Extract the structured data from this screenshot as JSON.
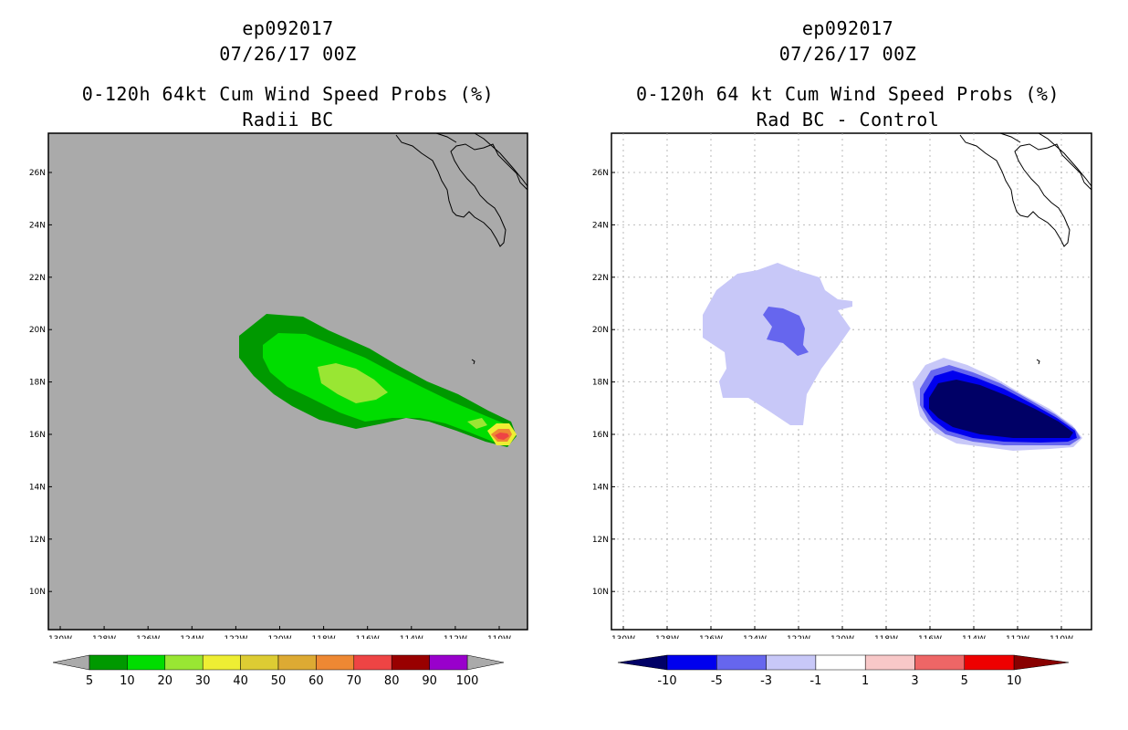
{
  "left_panel": {
    "title_line1": "ep092017",
    "title_line2": "07/26/17 00Z",
    "title_line3": "0-120h 64kt Cum Wind Speed Probs (%)",
    "title_line4": "Radii BC",
    "lat_ticks": [
      "26N",
      "24N",
      "22N",
      "20N",
      "18N",
      "16N",
      "14N",
      "12N",
      "10N"
    ],
    "lon_ticks": [
      "130W",
      "128W",
      "126W",
      "124W",
      "122W",
      "120W",
      "118W",
      "116W",
      "114W",
      "112W",
      "110W"
    ],
    "colorbar": {
      "labels": [
        "5",
        "10",
        "20",
        "30",
        "40",
        "50",
        "60",
        "70",
        "80",
        "90",
        "100"
      ],
      "colors": [
        "#009900",
        "#00dd00",
        "#99e633",
        "#eeee33",
        "#ddcc33",
        "#ddaa33",
        "#ee8833",
        "#ee4444",
        "#990000",
        "#9900cc"
      ]
    }
  },
  "right_panel": {
    "title_line1": "ep092017",
    "title_line2": "07/26/17 00Z",
    "title_line3": "0-120h 64 kt Cum Wind Speed Probs (%)",
    "title_line4": "Rad BC - Control",
    "lat_ticks": [
      "26N",
      "24N",
      "22N",
      "20N",
      "18N",
      "16N",
      "14N",
      "12N",
      "10N"
    ],
    "lon_ticks": [
      "130W",
      "128W",
      "126W",
      "124W",
      "122W",
      "120W",
      "118W",
      "116W",
      "114W",
      "112W",
      "110W"
    ],
    "colorbar": {
      "labels": [
        "-10",
        "-5",
        "-3",
        "-1",
        "1",
        "3",
        "5",
        "10"
      ],
      "colors": [
        "#000066",
        "#0000ee",
        "#6666ee",
        "#c8c8f8",
        "#ffffff",
        "#f8c8c8",
        "#ee6666",
        "#ee0000",
        "#880000"
      ]
    }
  }
}
